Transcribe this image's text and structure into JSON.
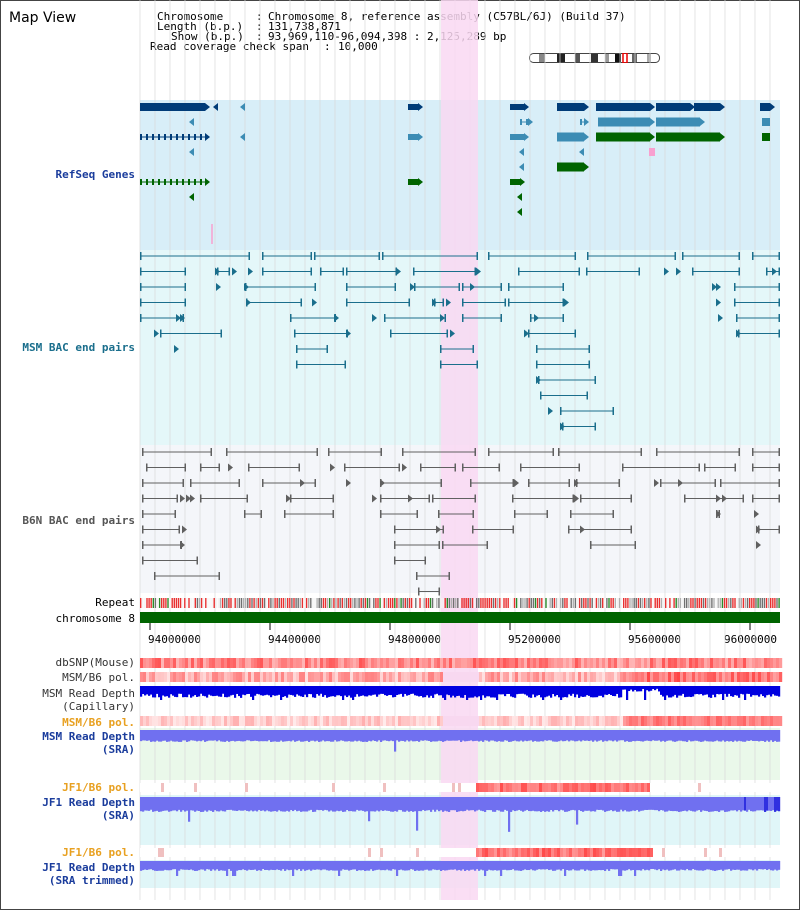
{
  "view": {
    "title": "Map View"
  },
  "info": {
    "chromosome_key": "Chromosome",
    "chromosome_value": "Chromosome 8, reference assembly (C57BL/6J) (Build 37)",
    "length_key": "Length (b.p.)",
    "length_value": "131,738,871",
    "show_key": "Show (b.p.)",
    "show_value": "93,969,110-96,094,398 : 2,125,289 bp",
    "coverage_key": "Read coverage check span",
    "coverage_value": "10,000"
  },
  "tracks": {
    "refseq": "RefSeq Genes",
    "msm_bac": "MSM BAC end pairs",
    "b6n_bac": "B6N BAC end pairs",
    "repeat": "Repeat",
    "chromosome": "chromosome 8",
    "dbsnp": "dbSNP(Mouse)",
    "msm_b6_pol": "MSM/B6 pol.",
    "msm_read_cap_1": "MSM Read Depth",
    "msm_read_cap_2": "(Capillary)",
    "msm_b6_pol_2": "MSM/B6 pol.",
    "msm_read_sra_1": "MSM Read Depth",
    "msm_read_sra_2": "(SRA)",
    "jf1_pol_1": "JF1/B6 pol.",
    "jf1_read_1": "JF1 Read Depth",
    "jf1_read_1b": "(SRA)",
    "jf1_pol_2": "JF1/B6 pol.",
    "jf1_read_2": "JF1 Read Depth",
    "jf1_read_2b": "(SRA trimmed)"
  },
  "axis": {
    "ticks": [
      "94000000",
      "94400000",
      "94800000",
      "95200000",
      "95600000",
      "96000000"
    ]
  },
  "colors": {
    "refseq_bg": "#d8eef8",
    "msm_bg": "#e4f7f9",
    "b6n_bg": "#f4f6fa",
    "highlight": "#f9d8f2",
    "dark_blue": "#003c78",
    "mid_blue": "#3c8cb4",
    "green": "#006400",
    "teal": "#1a6e8c",
    "depth_blue": "#0000e0",
    "depth_light": "#7070f0"
  }
}
